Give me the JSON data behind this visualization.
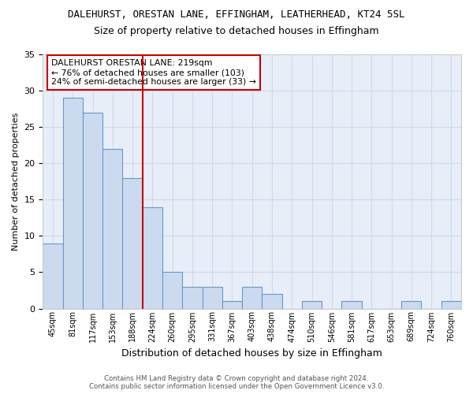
{
  "title": "DALEHURST, ORESTAN LANE, EFFINGHAM, LEATHERHEAD, KT24 5SL",
  "subtitle": "Size of property relative to detached houses in Effingham",
  "xlabel": "Distribution of detached houses by size in Effingham",
  "ylabel": "Number of detached properties",
  "categories": [
    "45sqm",
    "81sqm",
    "117sqm",
    "153sqm",
    "188sqm",
    "224sqm",
    "260sqm",
    "295sqm",
    "331sqm",
    "367sqm",
    "403sqm",
    "438sqm",
    "474sqm",
    "510sqm",
    "546sqm",
    "581sqm",
    "617sqm",
    "653sqm",
    "689sqm",
    "724sqm",
    "760sqm"
  ],
  "values": [
    9,
    29,
    27,
    22,
    18,
    14,
    5,
    3,
    3,
    1,
    3,
    2,
    0,
    1,
    0,
    1,
    0,
    0,
    1,
    0,
    1
  ],
  "bar_color": "#ccdaf0",
  "bar_edge_color": "#6699cc",
  "background_color": "#e8eef8",
  "grid_color": "#d0d8e8",
  "vline_x_index": 5,
  "vline_color": "#cc0000",
  "annotation_title": "DALEHURST ORESTAN LANE: 219sqm",
  "annotation_line1": "← 76% of detached houses are smaller (103)",
  "annotation_line2": "24% of semi-detached houses are larger (33) →",
  "annotation_box_color": "white",
  "annotation_box_edge": "#cc0000",
  "ylim": [
    0,
    35
  ],
  "yticks": [
    0,
    5,
    10,
    15,
    20,
    25,
    30,
    35
  ],
  "footer1": "Contains HM Land Registry data © Crown copyright and database right 2024.",
  "footer2": "Contains public sector information licensed under the Open Government Licence v3.0."
}
